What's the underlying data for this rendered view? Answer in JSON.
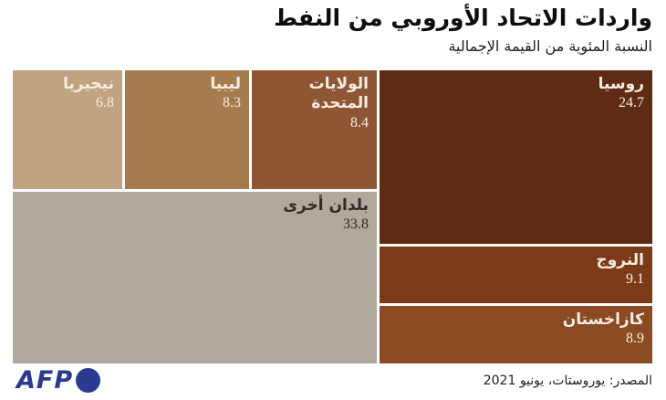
{
  "header": {
    "title": "واردات الاتحاد الأوروبي من النفط",
    "subtitle": "النسبة المئوية من القيمة الإجمالية"
  },
  "footer": {
    "logo_text": "AFP",
    "source": "المصدر: يوروستات، يونيو 2021"
  },
  "colors": {
    "background": "#FFFFFF",
    "logo_blue": "#2A3B8F",
    "light_text": "#F7EDE2",
    "dark_text": "#2E2A26"
  },
  "chart_data": {
    "type": "treemap",
    "title": "واردات الاتحاد الأوروبي من النفط",
    "subtitle": "النسبة المئوية من القيمة الإجمالية",
    "unit": "percent_of_total_value",
    "legend": "none",
    "tiles": [
      {
        "id": "nigeria",
        "label": "نيجيريا",
        "value": 6.8,
        "color": "#C2A381",
        "text_color": "#F7EDE2"
      },
      {
        "id": "libya",
        "label": "ليبيا",
        "value": 8.3,
        "color": "#A67C4E",
        "text_color": "#F7EDE2"
      },
      {
        "id": "united-states",
        "label": "الولايات المتحدة",
        "value": 8.4,
        "color": "#8F5634",
        "text_color": "#F7EDE2"
      },
      {
        "id": "other-countries",
        "label": "بلدان أخرى",
        "value": 33.8,
        "color": "#B0A99D",
        "text_color": "#2E2A26"
      },
      {
        "id": "russia",
        "label": "روسيا",
        "value": 24.7,
        "color": "#5F2B14",
        "text_color": "#F7EDE2"
      },
      {
        "id": "norway",
        "label": "النروج",
        "value": 9.1,
        "color": "#7C3A18",
        "text_color": "#F7EDE2"
      },
      {
        "id": "kazakhstan",
        "label": "كازاخستان",
        "value": 8.9,
        "color": "#8B4B22",
        "text_color": "#F7EDE2"
      }
    ]
  }
}
